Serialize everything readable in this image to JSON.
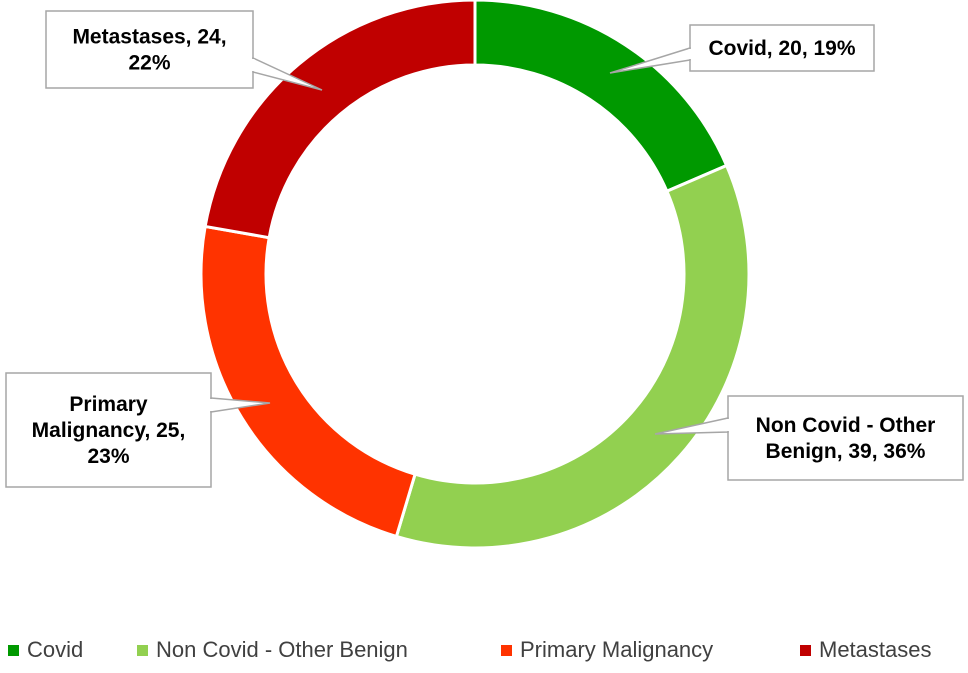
{
  "chart_data": {
    "type": "pie",
    "variant": "doughnut",
    "title": "",
    "series": [
      {
        "name": "Covid",
        "value": 20,
        "percent": "19%",
        "label": "Covid, 20, 19%",
        "color": "#009900"
      },
      {
        "name": "Non Covid - Other Benign",
        "value": 39,
        "percent": "36%",
        "label": "Non Covid - Other Benign, 39, 36%",
        "color": "#92d050"
      },
      {
        "name": "Primary Malignancy",
        "value": 25,
        "percent": "23%",
        "label": "Primary Malignancy, 25, 23%",
        "color": "#ff3300"
      },
      {
        "name": "Metastases",
        "value": 24,
        "percent": "22%",
        "label": "Metastases, 24, 22%",
        "color": "#c00000"
      }
    ],
    "legend_position": "bottom",
    "data_labels": "callouts"
  },
  "legend": [
    {
      "label": "Covid",
      "color": "#009900"
    },
    {
      "label": "Non Covid - Other Benign",
      "color": "#92d050"
    },
    {
      "label": "Primary Malignancy",
      "color": "#ff3300"
    },
    {
      "label": "Metastases",
      "color": "#c00000"
    }
  ]
}
